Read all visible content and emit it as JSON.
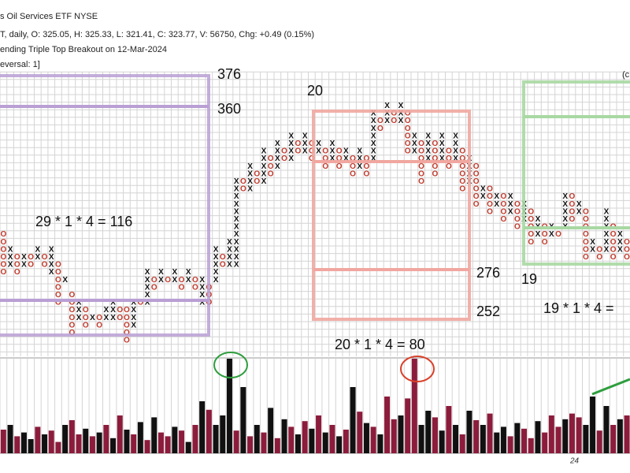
{
  "chart_data": {
    "type": "pnf",
    "header": [
      "s Oil Services ETF  NYSE",
      "T, daily, O: 325.05, H: 325.33, L: 321.41, C: 323.77, V: 56750, Chg: +0.49 (0.15%)",
      "ending Triple Top Breakout on 12-Mar-2024",
      "eversal: 1]"
    ],
    "corner_note": "(c",
    "annotations": [
      "376",
      "360",
      "29 * 1 * 4 = 116",
      "20",
      "276",
      "252",
      "20 * 1 * 4 = 80",
      "19",
      "19 * 1 * 4 ="
    ],
    "date_label": "24",
    "x_color": "#111111",
    "o_color": "#c0392b",
    "ylim": [
      -1,
      35
    ],
    "columns": [
      {
        "type": "O",
        "low": 9,
        "high": 14
      },
      {
        "type": "X",
        "low": 10,
        "high": 12
      },
      {
        "type": "O",
        "low": 9,
        "high": 11
      },
      {
        "type": "X",
        "low": 10,
        "high": 11
      },
      {
        "type": "O",
        "low": 10,
        "high": 11
      },
      {
        "type": "X",
        "low": 11,
        "high": 12
      },
      {
        "type": "O",
        "low": 10,
        "high": 11
      },
      {
        "type": "X",
        "low": 9,
        "high": 12
      },
      {
        "type": "O",
        "low": 5,
        "high": 10
      },
      {
        "type": "X",
        "low": 8,
        "high": 8
      },
      {
        "type": "O",
        "low": 1,
        "high": 6
      },
      {
        "type": "X",
        "low": 3,
        "high": 5
      },
      {
        "type": "O",
        "low": 2,
        "high": 4
      },
      {
        "type": "X",
        "low": 3,
        "high": 3
      },
      {
        "type": "O",
        "low": 2,
        "high": 3
      },
      {
        "type": "X",
        "low": 3,
        "high": 4
      },
      {
        "type": "X",
        "low": 3,
        "high": 5
      },
      {
        "type": "O",
        "low": 3,
        "high": 4
      },
      {
        "type": "O",
        "low": 0,
        "high": 4
      },
      {
        "type": "X",
        "low": 2,
        "high": 5
      },
      {
        "type": "O",
        "low": 5,
        "high": 5
      },
      {
        "type": "X",
        "low": 5,
        "high": 9
      },
      {
        "type": "O",
        "low": 7,
        "high": 8
      },
      {
        "type": "X",
        "low": 8,
        "high": 9
      },
      {
        "type": "O",
        "low": 8,
        "high": 8
      },
      {
        "type": "X",
        "low": 8,
        "high": 9
      },
      {
        "type": "O",
        "low": 7,
        "high": 8
      },
      {
        "type": "X",
        "low": 8,
        "high": 9
      },
      {
        "type": "O",
        "low": 7,
        "high": 8
      },
      {
        "type": "X",
        "low": 5,
        "high": 8
      },
      {
        "type": "O",
        "low": 5,
        "high": 7
      },
      {
        "type": "X",
        "low": 8,
        "high": 12
      },
      {
        "type": "O",
        "low": 10,
        "high": 11
      },
      {
        "type": "X",
        "low": 10,
        "high": 13
      },
      {
        "type": "X",
        "low": 10,
        "high": 21
      },
      {
        "type": "O",
        "low": 20,
        "high": 21
      },
      {
        "type": "X",
        "low": 20,
        "high": 23
      },
      {
        "type": "O",
        "low": 21,
        "high": 22
      },
      {
        "type": "X",
        "low": 21,
        "high": 25
      },
      {
        "type": "O",
        "low": 22,
        "high": 24
      },
      {
        "type": "X",
        "low": 23,
        "high": 26
      },
      {
        "type": "O",
        "low": 24,
        "high": 25
      },
      {
        "type": "X",
        "low": 24,
        "high": 27
      },
      {
        "type": "O",
        "low": 25,
        "high": 26
      },
      {
        "type": "X",
        "low": 25,
        "high": 27
      },
      {
        "type": "O",
        "low": 24,
        "high": 26
      },
      {
        "type": "X",
        "low": 25,
        "high": 26
      },
      {
        "type": "O",
        "low": 23,
        "high": 25
      },
      {
        "type": "X",
        "low": 24,
        "high": 26
      },
      {
        "type": "O",
        "low": 23,
        "high": 25
      },
      {
        "type": "X",
        "low": 24,
        "high": 25
      },
      {
        "type": "O",
        "low": 22,
        "high": 24
      },
      {
        "type": "X",
        "low": 23,
        "high": 25
      },
      {
        "type": "O",
        "low": 22,
        "high": 24
      },
      {
        "type": "X",
        "low": 24,
        "high": 30
      },
      {
        "type": "O",
        "low": 28,
        "high": 29
      },
      {
        "type": "X",
        "low": 29,
        "high": 31
      },
      {
        "type": "O",
        "low": 29,
        "high": 30
      },
      {
        "type": "X",
        "low": 29,
        "high": 31
      },
      {
        "type": "O",
        "low": 25,
        "high": 30
      },
      {
        "type": "X",
        "low": 25,
        "high": 27
      },
      {
        "type": "O",
        "low": 21,
        "high": 26
      },
      {
        "type": "X",
        "low": 24,
        "high": 27
      },
      {
        "type": "O",
        "low": 22,
        "high": 26
      },
      {
        "type": "X",
        "low": 24,
        "high": 27
      },
      {
        "type": "O",
        "low": 23,
        "high": 25
      },
      {
        "type": "X",
        "low": 24,
        "high": 27
      },
      {
        "type": "O",
        "low": 20,
        "high": 25
      },
      {
        "type": "X",
        "low": 21,
        "high": 24
      },
      {
        "type": "O",
        "low": 18,
        "high": 23
      },
      {
        "type": "X",
        "low": 19,
        "high": 20
      },
      {
        "type": "O",
        "low": 17,
        "high": 20
      },
      {
        "type": "X",
        "low": 18,
        "high": 19
      },
      {
        "type": "O",
        "low": 16,
        "high": 19
      },
      {
        "type": "X",
        "low": 17,
        "high": 19
      },
      {
        "type": "O",
        "low": 15,
        "high": 18
      },
      {
        "type": "X",
        "low": 16,
        "high": 18
      },
      {
        "type": "O",
        "low": 13,
        "high": 17
      },
      {
        "type": "X",
        "low": 14,
        "high": 16
      },
      {
        "type": "O",
        "low": 13,
        "high": 15
      },
      {
        "type": "X",
        "low": 14,
        "high": 15
      },
      {
        "type": "O",
        "low": 14,
        "high": 14
      },
      {
        "type": "X",
        "low": 15,
        "high": 19
      },
      {
        "type": "O",
        "low": 16,
        "high": 19
      },
      {
        "type": "X",
        "low": 17,
        "high": 18
      },
      {
        "type": "O",
        "low": 11,
        "high": 17
      },
      {
        "type": "X",
        "low": 12,
        "high": 13
      },
      {
        "type": "O",
        "low": 11,
        "high": 12
      },
      {
        "type": "X",
        "low": 12,
        "high": 17
      },
      {
        "type": "O",
        "low": 11,
        "high": 15
      },
      {
        "type": "X",
        "low": 12,
        "high": 14
      },
      {
        "type": "O",
        "low": 11,
        "high": 13
      }
    ],
    "volume": {
      "ylim": [
        0,
        100
      ],
      "values": [
        25,
        30,
        18,
        22,
        15,
        28,
        20,
        24,
        12,
        30,
        35,
        20,
        26,
        18,
        22,
        30,
        16,
        40,
        25,
        20,
        33,
        14,
        38,
        22,
        18,
        28,
        24,
        12,
        30,
        55,
        46,
        30,
        40,
        100,
        24,
        70,
        18,
        30,
        22,
        48,
        16,
        36,
        28,
        20,
        34,
        26,
        40,
        22,
        30,
        18,
        25,
        70,
        44,
        32,
        28,
        20,
        60,
        36,
        40,
        58,
        100,
        30,
        45,
        38,
        24,
        50,
        30,
        20,
        45,
        35,
        30,
        42,
        22,
        28,
        18,
        32,
        26,
        16,
        34,
        22,
        40,
        28,
        36,
        42,
        38,
        30,
        60,
        24,
        50,
        30,
        36,
        40
      ],
      "colors": [
        "#8c1c3c",
        "#111111",
        "#8c1c3c",
        "#111111",
        "#111111",
        "#8c1c3c",
        "#111111",
        "#8c1c3c",
        "#8c1c3c",
        "#111111",
        "#8c1c3c",
        "#8c1c3c",
        "#111111",
        "#8c1c3c",
        "#111111",
        "#8c1c3c",
        "#111111",
        "#8c1c3c",
        "#111111",
        "#8c1c3c",
        "#111111",
        "#8c1c3c",
        "#111111",
        "#8c1c3c",
        "#8c1c3c",
        "#111111",
        "#8c1c3c",
        "#111111",
        "#8c1c3c",
        "#111111",
        "#8c1c3c",
        "#111111",
        "#111111",
        "#111111",
        "#8c1c3c",
        "#111111",
        "#8c1c3c",
        "#111111",
        "#8c1c3c",
        "#111111",
        "#8c1c3c",
        "#111111",
        "#8c1c3c",
        "#111111",
        "#8c1c3c",
        "#111111",
        "#8c1c3c",
        "#111111",
        "#8c1c3c",
        "#111111",
        "#8c1c3c",
        "#111111",
        "#8c1c3c",
        "#111111",
        "#8c1c3c",
        "#111111",
        "#8c1c3c",
        "#8c1c3c",
        "#111111",
        "#8c1c3c",
        "#8c1c3c",
        "#111111",
        "#111111",
        "#8c1c3c",
        "#111111",
        "#8c1c3c",
        "#111111",
        "#8c1c3c",
        "#111111",
        "#8c1c3c",
        "#111111",
        "#8c1c3c",
        "#111111",
        "#111111",
        "#8c1c3c",
        "#111111",
        "#8c1c3c",
        "#8c1c3c",
        "#111111",
        "#8c1c3c",
        "#8c1c3c",
        "#8c1c3c",
        "#111111",
        "#8c1c3c",
        "#8c1c3c",
        "#111111",
        "#111111",
        "#8c1c3c",
        "#111111",
        "#8c1c3c",
        "#111111",
        "#8c1c3c"
      ]
    }
  }
}
